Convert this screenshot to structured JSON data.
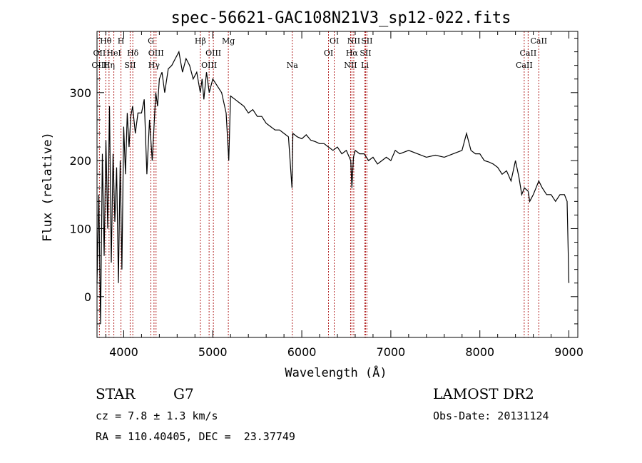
{
  "chart_data": {
    "type": "line",
    "title": "spec-56621-GAC108N21V3_sp12-022.fits",
    "xlabel": "Wavelength (Å)",
    "ylabel": "Flux (relative)",
    "xlim": [
      3700,
      9100
    ],
    "ylim": [
      -60,
      390
    ],
    "x_ticks": [
      4000,
      5000,
      6000,
      7000,
      8000,
      9000
    ],
    "x_tick_labels": [
      "4000",
      "5000",
      "6000",
      "7000",
      "8000",
      "9000"
    ],
    "y_ticks": [
      0,
      100,
      200,
      300
    ],
    "y_tick_labels": [
      "0",
      "100",
      "200",
      "300"
    ],
    "grid": false,
    "series_color": "#000000",
    "line_color": "#b22222",
    "series": [
      {
        "x": [
          3700,
          3720,
          3740,
          3760,
          3780,
          3800,
          3820,
          3840,
          3860,
          3880,
          3900,
          3920,
          3940,
          3960,
          3980,
          4000,
          4020,
          4040,
          4060,
          4080,
          4100,
          4130,
          4160,
          4200,
          4230,
          4260,
          4290,
          4320,
          4340,
          4360,
          4380,
          4400,
          4430,
          4460,
          4500,
          4540,
          4580,
          4620,
          4660,
          4700,
          4740,
          4780,
          4820,
          4860,
          4880,
          4900,
          4930,
          4960,
          5000,
          5050,
          5100,
          5150,
          5180,
          5200,
          5250,
          5300,
          5350,
          5400,
          5450,
          5500,
          5550,
          5600,
          5650,
          5700,
          5750,
          5800,
          5850,
          5890,
          5900,
          5950,
          6000,
          6050,
          6100,
          6150,
          6200,
          6250,
          6300,
          6350,
          6400,
          6450,
          6500,
          6550,
          6563,
          6580,
          6600,
          6650,
          6700,
          6750,
          6800,
          6850,
          6900,
          6950,
          7000,
          7050,
          7100,
          7200,
          7300,
          7400,
          7500,
          7600,
          7700,
          7800,
          7850,
          7900,
          7950,
          8000,
          8050,
          8100,
          8150,
          8200,
          8250,
          8300,
          8350,
          8400,
          8440,
          8470,
          8500,
          8542,
          8560,
          8600,
          8662,
          8700,
          8750,
          8800,
          8850,
          8900,
          8950,
          8980,
          9000
        ],
        "y": [
          20,
          150,
          -40,
          210,
          60,
          230,
          100,
          280,
          50,
          210,
          110,
          190,
          20,
          200,
          40,
          250,
          180,
          270,
          220,
          265,
          280,
          240,
          270,
          270,
          290,
          180,
          260,
          200,
          250,
          300,
          280,
          320,
          330,
          300,
          335,
          340,
          350,
          360,
          330,
          350,
          340,
          320,
          330,
          300,
          320,
          290,
          330,
          300,
          320,
          310,
          300,
          270,
          200,
          295,
          290,
          285,
          280,
          270,
          275,
          265,
          265,
          255,
          250,
          245,
          245,
          240,
          235,
          160,
          240,
          235,
          232,
          238,
          230,
          228,
          225,
          225,
          220,
          215,
          220,
          210,
          215,
          200,
          160,
          205,
          215,
          210,
          210,
          200,
          205,
          195,
          200,
          205,
          200,
          215,
          210,
          215,
          210,
          205,
          208,
          205,
          210,
          215,
          240,
          215,
          210,
          210,
          200,
          198,
          195,
          190,
          180,
          185,
          170,
          200,
          175,
          150,
          160,
          155,
          140,
          150,
          170,
          160,
          150,
          150,
          140,
          150,
          150,
          140,
          20
        ]
      }
    ],
    "line_labels": [
      {
        "text": "Hθ",
        "x": 3798,
        "row": 1
      },
      {
        "text": "H",
        "x": 3969,
        "row": 1
      },
      {
        "text": "G",
        "x": 4305,
        "row": 1
      },
      {
        "text": "Hβ",
        "x": 4861,
        "row": 1
      },
      {
        "text": "Mg",
        "x": 5175,
        "row": 1
      },
      {
        "text": "OI",
        "x": 6364,
        "row": 1
      },
      {
        "text": "NII",
        "x": 6584,
        "row": 1
      },
      {
        "text": "SII",
        "x": 6731,
        "row": 1
      },
      {
        "text": "CaII",
        "x": 8662,
        "row": 1
      },
      {
        "text": "OII",
        "x": 3727,
        "row": 2
      },
      {
        "text": "HeI",
        "x": 3889,
        "row": 2
      },
      {
        "text": "Hδ",
        "x": 4102,
        "row": 2
      },
      {
        "text": "OIII",
        "x": 4363,
        "row": 2
      },
      {
        "text": "OIII",
        "x": 5007,
        "row": 2
      },
      {
        "text": "OI",
        "x": 6300,
        "row": 2
      },
      {
        "text": "Hα",
        "x": 6563,
        "row": 2
      },
      {
        "text": "SII",
        "x": 6716,
        "row": 2
      },
      {
        "text": "CaII",
        "x": 8542,
        "row": 2
      },
      {
        "text": "OIII",
        "x": 3727,
        "row": 3
      },
      {
        "text": "Hη",
        "x": 3835,
        "row": 3
      },
      {
        "text": "SII",
        "x": 4072,
        "row": 3
      },
      {
        "text": "Hγ",
        "x": 4340,
        "row": 3
      },
      {
        "text": "OIII",
        "x": 4959,
        "row": 3
      },
      {
        "text": "Na",
        "x": 5893,
        "row": 3
      },
      {
        "text": "NII",
        "x": 6548,
        "row": 3
      },
      {
        "text": "Li",
        "x": 6708,
        "row": 3
      },
      {
        "text": "CaII",
        "x": 8498,
        "row": 3
      }
    ],
    "line_positions": [
      3727,
      3798,
      3835,
      3889,
      3969,
      4072,
      4102,
      4305,
      4340,
      4363,
      4861,
      4959,
      5007,
      5175,
      5893,
      6300,
      6364,
      6548,
      6563,
      6584,
      6708,
      6716,
      6731,
      8498,
      8542,
      8662
    ]
  },
  "footer": {
    "object_class": "STAR",
    "subclass": "G7",
    "redshift": "cz = 7.8 ± 1.3 km/s",
    "coords": "RA = 110.40405, DEC =  23.37749",
    "survey": "LAMOST DR2",
    "obs_date": "Obs-Date: 20131124"
  }
}
